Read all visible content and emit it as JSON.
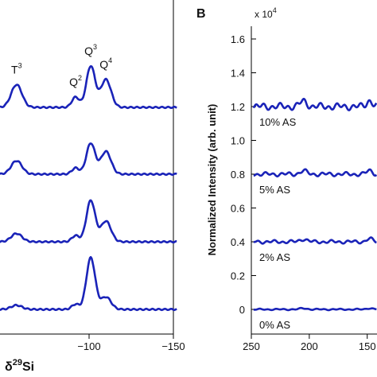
{
  "chart_data": [
    {
      "panel": "A",
      "type": "line",
      "xlabel": "δ29Si",
      "xlabel_parts": {
        "main": "δ",
        "sup": "29",
        "tail": "Si"
      },
      "x_reversed": true,
      "xlim": [
        -50,
        -150
      ],
      "xticks": [
        {
          "value": -100,
          "label": "-100"
        },
        {
          "value": -150,
          "label": "-150"
        }
      ],
      "peak_labels": [
        {
          "main": "T",
          "sup": "3"
        },
        {
          "main": "Q",
          "sup": "2"
        },
        {
          "main": "Q",
          "sup": "3"
        },
        {
          "main": "Q",
          "sup": "4"
        }
      ],
      "peaks": [
        {
          "label": "T3",
          "shift": -57
        },
        {
          "label": "Q2",
          "shift": -92
        },
        {
          "label": "Q3",
          "shift": -101
        },
        {
          "label": "Q4",
          "shift": -110
        }
      ],
      "series": [
        {
          "offset_index": 3,
          "peak_heights": [
            0.22,
            0.1,
            0.4,
            0.27
          ]
        },
        {
          "offset_index": 2,
          "peak_heights": [
            0.13,
            0.06,
            0.3,
            0.22
          ]
        },
        {
          "offset_index": 1,
          "peak_heights": [
            0.08,
            0.06,
            0.4,
            0.2
          ]
        },
        {
          "offset_index": 0,
          "peak_heights": [
            0.04,
            0.05,
            0.5,
            0.12
          ]
        }
      ],
      "line_color": "#1a23b8"
    },
    {
      "panel": "B",
      "type": "line",
      "panel_label": "B",
      "ylabel": "Normalized Intensity (arb. unit)",
      "y_multiplier": "x 10",
      "y_multiplier_exp": "4",
      "ylim": [
        -0.08,
        1.72
      ],
      "yticks": [
        {
          "value": 0,
          "label": "0"
        },
        {
          "value": 0.4,
          "label": "0.4"
        },
        {
          "value": 0.8,
          "label": "0.8"
        },
        {
          "value": 1.2,
          "label": "1.2"
        },
        {
          "value": 1.6,
          "label": "1.6"
        }
      ],
      "yticks_minor": [
        {
          "value": 0.2,
          "label": "0.2"
        },
        {
          "value": 0.6,
          "label": "0.6"
        },
        {
          "value": 1.0,
          "label": "1.0"
        },
        {
          "value": 1.4,
          "label": "1.4"
        }
      ],
      "x_reversed": true,
      "xlim": [
        250,
        110
      ],
      "xticks": [
        {
          "value": 250,
          "label": "250"
        },
        {
          "value": 200,
          "label": "200"
        },
        {
          "value": 150,
          "label": "150"
        }
      ],
      "series": [
        {
          "name": "10% AS",
          "baseline": 1.2,
          "ripple": 0.02
        },
        {
          "name": "5% AS",
          "baseline": 0.8,
          "ripple": 0.012
        },
        {
          "name": "2% AS",
          "baseline": 0.4,
          "ripple": 0.01
        },
        {
          "name": "0% AS",
          "baseline": 0.0,
          "ripple": 0.004
        }
      ],
      "line_color": "#1a23b8"
    }
  ]
}
